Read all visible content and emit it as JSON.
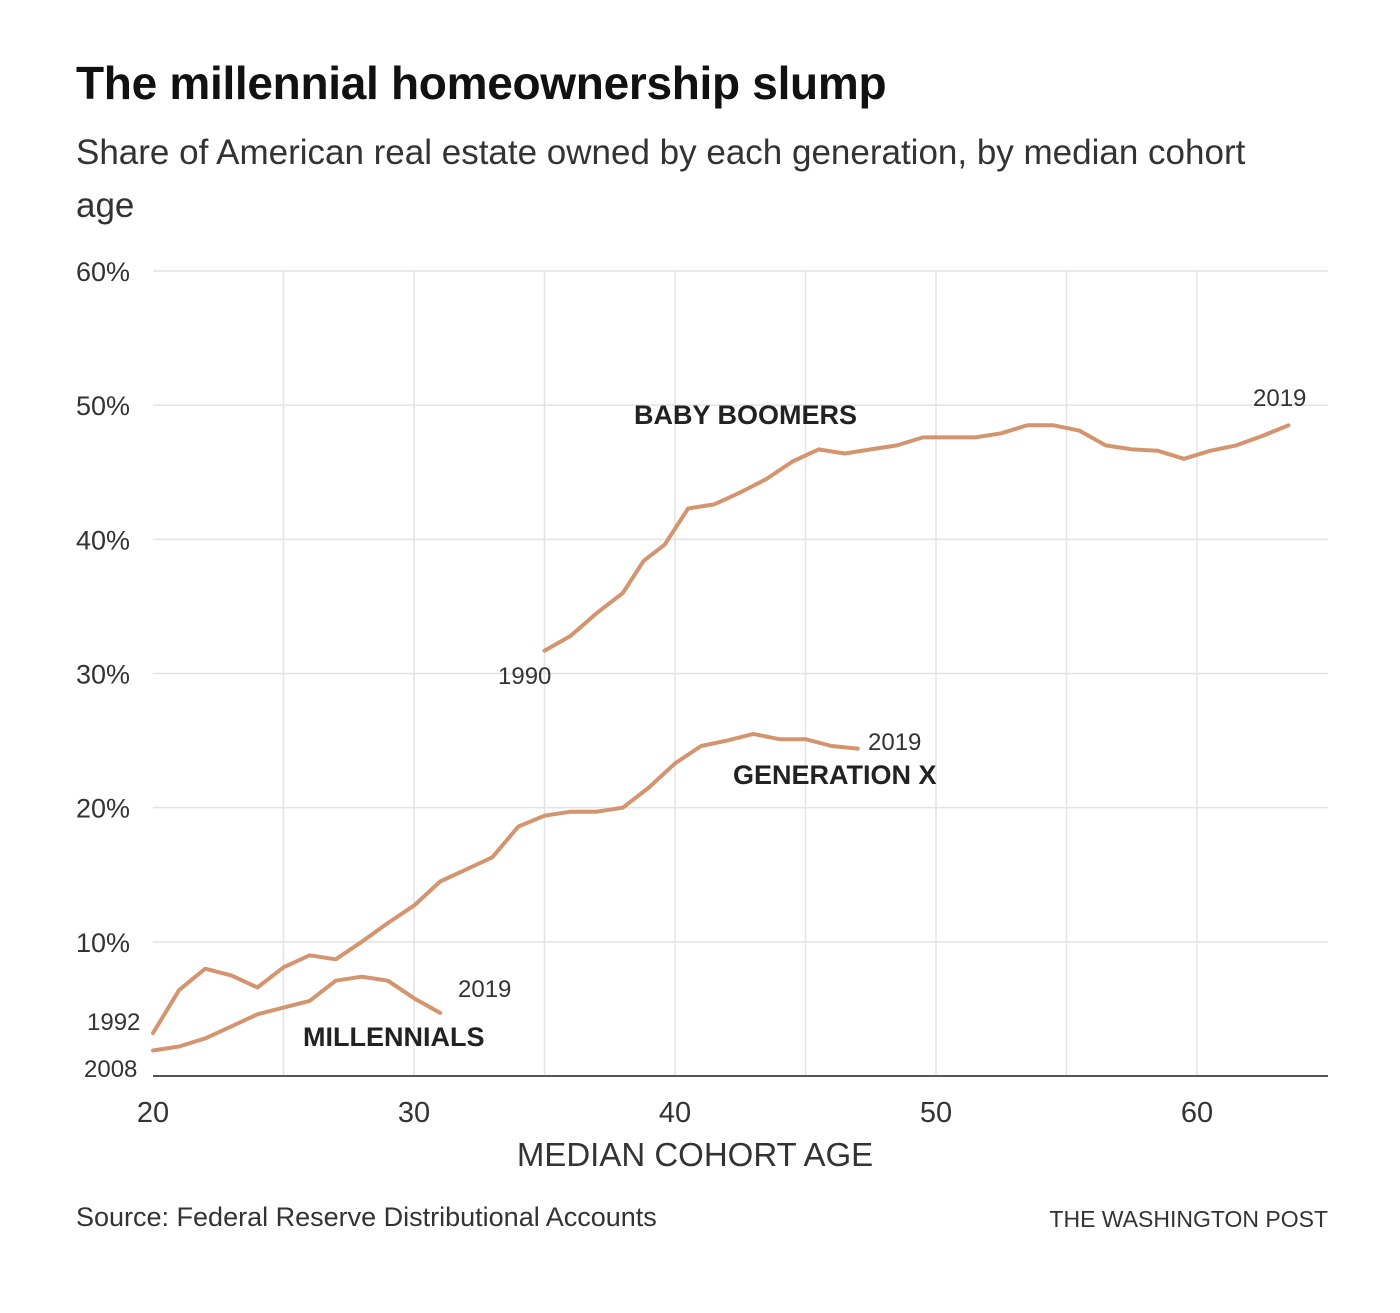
{
  "title": "The millennial homeownership slump",
  "subtitle": "Share of American real estate owned by each generation, by median cohort age",
  "source": "Source: Federal Reserve Distributional Accounts",
  "credit": "THE WASHINGTON POST",
  "colors": {
    "series": "#d4946e",
    "grid": "#e3e3e3",
    "axis": "#555555",
    "text": "#222222"
  },
  "chart_data": {
    "type": "line",
    "title": "The millennial homeownership slump",
    "subtitle": "Share of American real estate owned by each generation, by median cohort age",
    "xlabel": "MEDIAN COHORT AGE",
    "ylabel": "",
    "xlim": [
      20,
      66
    ],
    "ylim": [
      0,
      60
    ],
    "x_ticks": [
      {
        "value": 20,
        "label": "20"
      },
      {
        "value": 30,
        "label": "30"
      },
      {
        "value": 40,
        "label": "40"
      },
      {
        "value": 50,
        "label": "50"
      },
      {
        "value": 60,
        "label": "60"
      }
    ],
    "y_ticks": [
      {
        "value": 10,
        "label": "10%"
      },
      {
        "value": 20,
        "label": "20%"
      },
      {
        "value": 30,
        "label": "30%"
      },
      {
        "value": 40,
        "label": "40%"
      },
      {
        "value": 50,
        "label": "50%"
      },
      {
        "value": 60,
        "label": "60%"
      }
    ],
    "x_grid": [
      25,
      30,
      35,
      40,
      45,
      50,
      55,
      60
    ],
    "grid": true,
    "series": [
      {
        "name": "BABY BOOMERS",
        "start_label": "1990",
        "end_label": "2019",
        "x": [
          35,
          36,
          37,
          38,
          38.8,
          39.6,
          40.5,
          41.5,
          42.5,
          43.5,
          44.5,
          45.5,
          46.5,
          47.5,
          48.5,
          49.5,
          50.5,
          51.5,
          52.5,
          53.5,
          54.5,
          55.5,
          56.5,
          57.5,
          58.5,
          59.5,
          60.5,
          61.5,
          62.5,
          63.5
        ],
        "values": [
          31.7,
          32.8,
          34.5,
          36.0,
          38.4,
          39.6,
          42.3,
          42.6,
          43.5,
          44.5,
          45.8,
          46.7,
          46.4,
          46.7,
          47.0,
          47.6,
          47.6,
          47.6,
          47.9,
          48.5,
          48.5,
          48.1,
          47.0,
          46.7,
          46.6,
          46.0,
          46.6,
          47.0,
          47.7,
          48.5
        ]
      },
      {
        "name": "GENERATION X",
        "start_label": "1992",
        "end_label": "2019",
        "x": [
          20,
          21,
          22,
          23,
          24,
          25,
          26,
          27,
          28,
          29,
          30,
          31,
          32,
          33,
          34,
          35,
          36,
          37,
          38,
          39,
          40,
          41,
          42,
          43,
          44,
          45,
          46,
          47
        ],
        "values": [
          3.2,
          6.4,
          8.0,
          7.5,
          6.6,
          8.1,
          9.0,
          8.7,
          10.0,
          11.4,
          12.7,
          14.5,
          15.4,
          16.3,
          18.6,
          19.4,
          19.7,
          19.7,
          20.0,
          21.5,
          23.3,
          24.6,
          25.0,
          25.5,
          25.1,
          25.1,
          24.6,
          24.4
        ]
      },
      {
        "name": "MILLENNIALS",
        "start_label": "2008",
        "end_label": "2019",
        "x": [
          20,
          21,
          22,
          23,
          24,
          25,
          26,
          27,
          28,
          29,
          30,
          31
        ],
        "values": [
          1.9,
          2.2,
          2.8,
          3.7,
          4.6,
          5.1,
          5.6,
          7.1,
          7.4,
          7.1,
          5.8,
          4.7
        ]
      }
    ]
  }
}
